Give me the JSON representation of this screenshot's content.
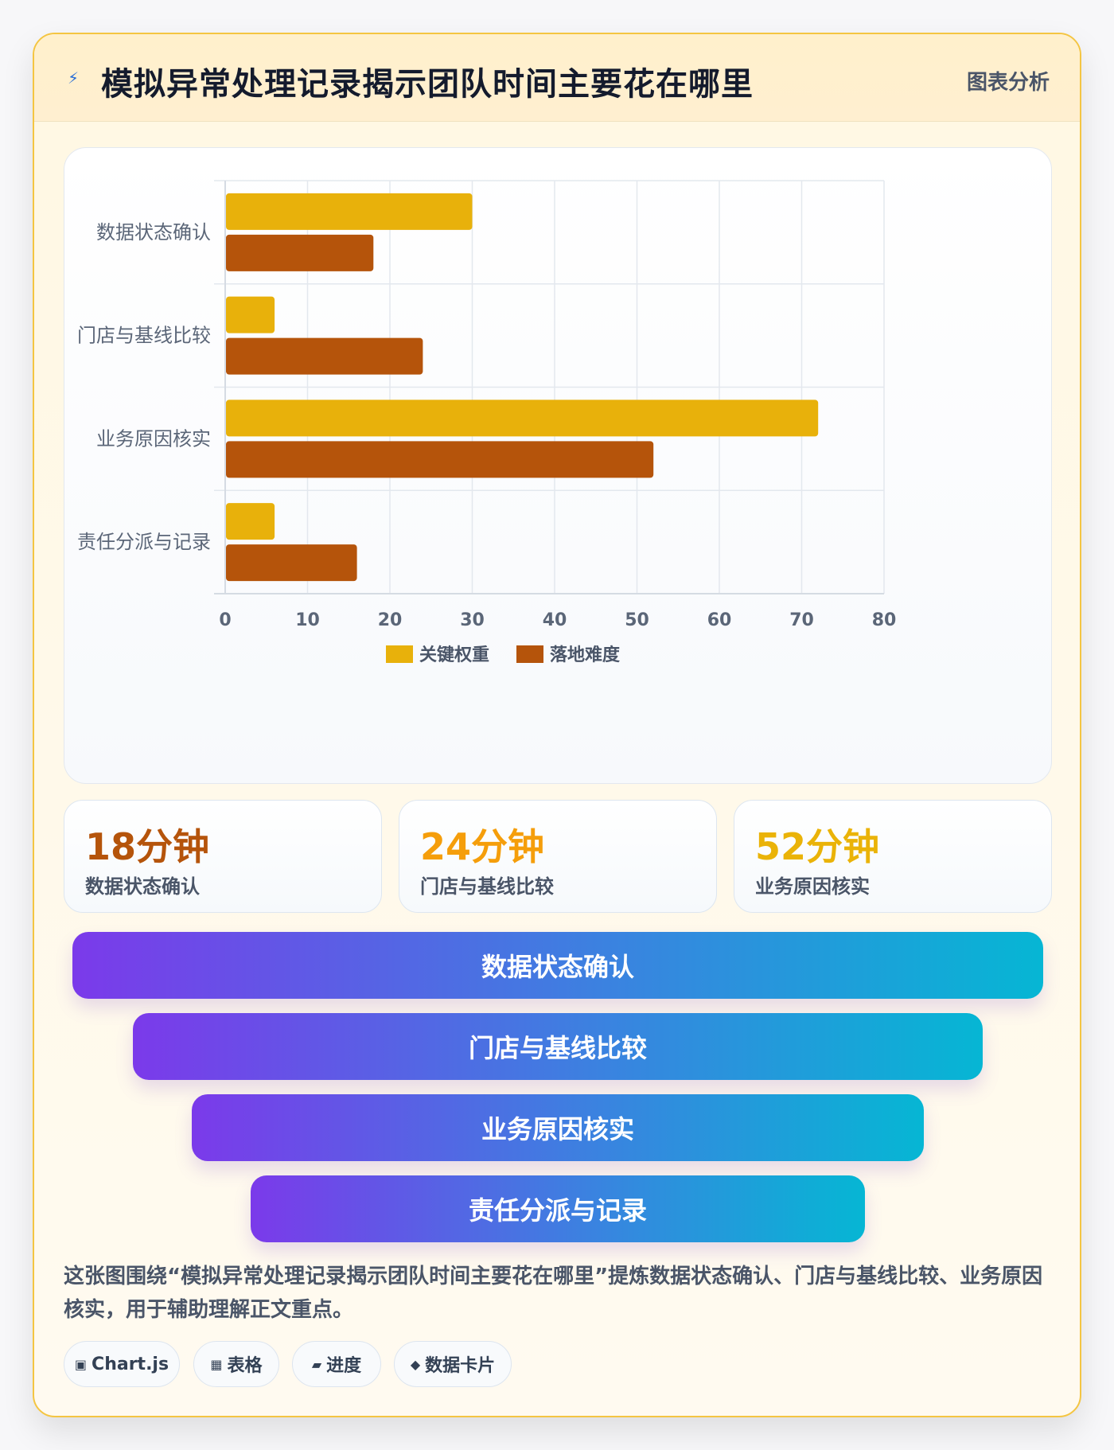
{
  "header": {
    "title": "模拟异常处理记录揭示团队时间主要花在哪里",
    "tag": "图表分析",
    "icon": "lightning-icon"
  },
  "chart_data": {
    "type": "bar",
    "orientation": "horizontal",
    "categories": [
      "数据状态确认",
      "门店与基线比较",
      "业务原因核实",
      "责任分派与记录"
    ],
    "series": [
      {
        "name": "关键权重",
        "values": [
          30,
          6,
          72,
          6
        ],
        "color": "#e8b10b"
      },
      {
        "name": "落地难度",
        "values": [
          18,
          24,
          52,
          16
        ],
        "color": "#b5540b"
      }
    ],
    "xlim": [
      0,
      80
    ],
    "xticks": [
      0,
      10,
      20,
      30,
      40,
      50,
      60,
      70,
      80
    ],
    "grid": true,
    "legend_position": "bottom"
  },
  "stats": [
    {
      "value": "18分钟",
      "label": "数据状态确认",
      "color": "#b5540b"
    },
    {
      "value": "24分钟",
      "label": "门店与基线比较",
      "color": "#f59e0b"
    },
    {
      "value": "52分钟",
      "label": "业务原因核实",
      "color": "#eab308"
    }
  ],
  "funnel": [
    "数据状态确认",
    "门店与基线比较",
    "业务原因核实",
    "责任分派与记录"
  ],
  "description": "这张图围绕“模拟异常处理记录揭示团队时间主要花在哪里”提炼数据状态确认、门店与基线比较、业务原因核实，用于辅助理解正文重点。",
  "chips": [
    {
      "icon": "▣",
      "label": "Chart.js"
    },
    {
      "icon": "▦",
      "label": "表格"
    },
    {
      "icon": "▰",
      "label": "进度"
    },
    {
      "icon": "◆",
      "label": "数据卡片"
    }
  ]
}
